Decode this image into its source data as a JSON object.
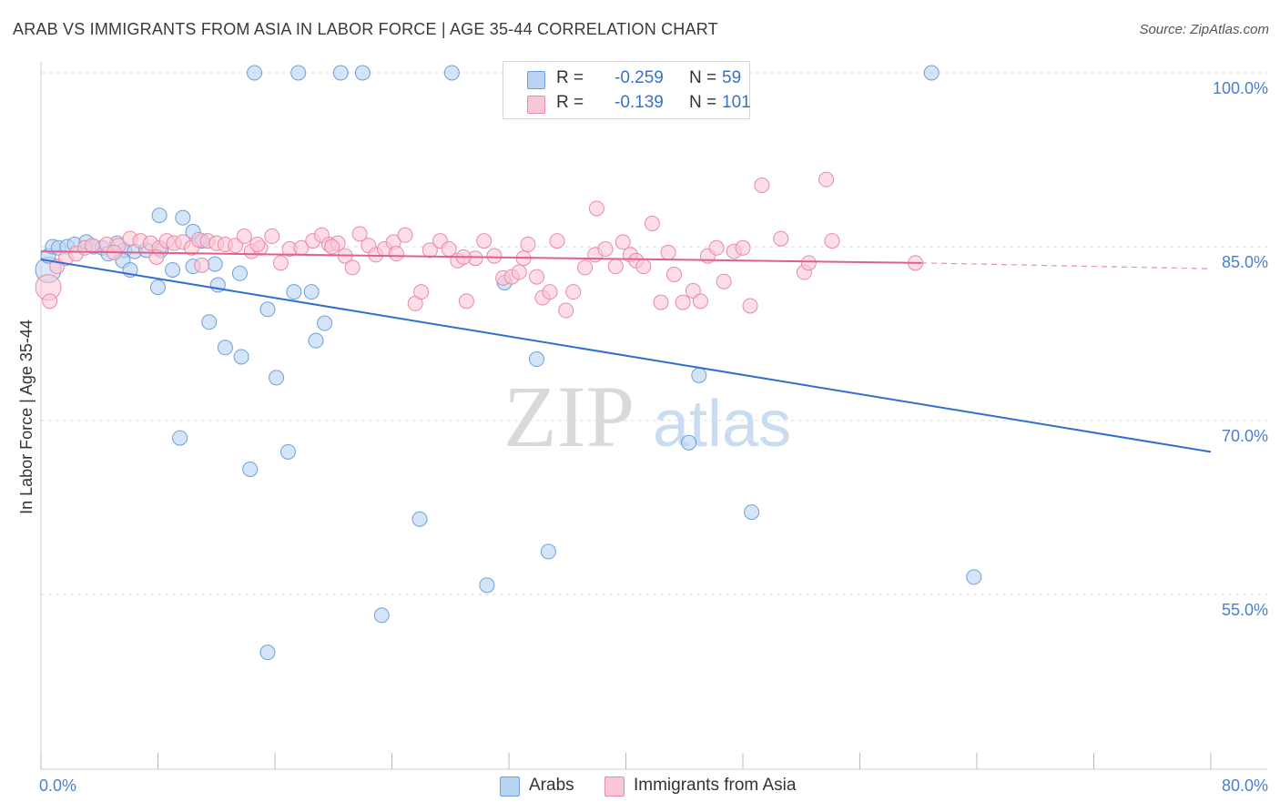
{
  "title": "ARAB VS IMMIGRANTS FROM ASIA IN LABOR FORCE | AGE 35-44 CORRELATION CHART",
  "source": "Source: ZipAtlas.com",
  "watermark": {
    "zip": "ZIP",
    "atlas": "atlas"
  },
  "legend": {
    "rows": [
      {
        "label": "R =",
        "r": "-0.259",
        "n_label": "N =",
        "n": "59",
        "color": "#b9d3f3",
        "border": "#6e9fdc"
      },
      {
        "label": "R =",
        "r": "-0.139",
        "n_label": "N =",
        "n": "101",
        "color": "#fbc7d6",
        "border": "#e98aa8"
      }
    ]
  },
  "bottom_legend": [
    {
      "name": "Arabs",
      "color": "#b9d3f3",
      "border": "#6e9fdc"
    },
    {
      "name": "Immigrants from Asia",
      "color": "#fbc7d6",
      "border": "#e98aa8"
    }
  ],
  "chart_data": {
    "type": "scatter",
    "title": "ARAB VS IMMIGRANTS FROM ASIA IN LABOR FORCE | AGE 35-44 CORRELATION CHART",
    "xlabel": "",
    "ylabel": "In Labor Force | Age 35-44",
    "xlim": [
      0,
      80
    ],
    "ylim": [
      40,
      101
    ],
    "x_tick_labels": [
      "0.0%",
      "80.0%"
    ],
    "y_ticks": [
      100,
      85,
      70,
      55
    ],
    "y_tick_labels": [
      "100.0%",
      "85.0%",
      "70.0%",
      "55.0%"
    ],
    "grid": true,
    "legend_position": "top-center",
    "series": [
      {
        "name": "Arabs",
        "color": "#6e9fdc",
        "fill": "#b9d3f3",
        "line_color": "#2f6fd1",
        "trend": {
          "x": [
            0,
            80
          ],
          "y": [
            83.9,
            67.3
          ],
          "dashed_from": null
        },
        "points": [
          [
            14.6,
            100
          ],
          [
            17.6,
            100
          ],
          [
            20.5,
            100
          ],
          [
            22.0,
            100
          ],
          [
            28.1,
            100
          ],
          [
            47.5,
            100
          ],
          [
            60.9,
            100
          ],
          [
            0.5,
            84.2
          ],
          [
            0.8,
            85.0
          ],
          [
            1.2,
            84.9
          ],
          [
            1.8,
            85.0
          ],
          [
            2.3,
            85.2
          ],
          [
            3.1,
            85.4
          ],
          [
            3.6,
            85.0
          ],
          [
            4.2,
            84.9
          ],
          [
            4.6,
            84.4
          ],
          [
            5.2,
            85.3
          ],
          [
            5.7,
            84.7
          ],
          [
            6.4,
            84.6
          ],
          [
            7.2,
            84.7
          ],
          [
            8.2,
            84.7
          ],
          [
            5.6,
            83.8
          ],
          [
            6.1,
            83.0
          ],
          [
            9.0,
            83.0
          ],
          [
            10.4,
            83.3
          ],
          [
            11.9,
            83.5
          ],
          [
            13.6,
            82.7
          ],
          [
            8.0,
            81.5
          ],
          [
            12.1,
            81.7
          ],
          [
            17.3,
            81.1
          ],
          [
            18.5,
            81.1
          ],
          [
            8.1,
            87.7
          ],
          [
            9.7,
            87.5
          ],
          [
            10.4,
            86.3
          ],
          [
            11.0,
            85.5
          ],
          [
            11.5,
            78.5
          ],
          [
            19.4,
            78.4
          ],
          [
            15.5,
            79.6
          ],
          [
            12.6,
            76.3
          ],
          [
            13.7,
            75.5
          ],
          [
            18.8,
            76.9
          ],
          [
            16.1,
            73.7
          ],
          [
            33.9,
            75.3
          ],
          [
            45.0,
            73.9
          ],
          [
            9.5,
            68.5
          ],
          [
            16.9,
            67.3
          ],
          [
            14.3,
            65.8
          ],
          [
            44.3,
            68.1
          ],
          [
            25.9,
            61.5
          ],
          [
            48.6,
            62.1
          ],
          [
            34.7,
            58.7
          ],
          [
            63.8,
            56.5
          ],
          [
            30.5,
            55.8
          ],
          [
            23.3,
            53.2
          ],
          [
            15.5,
            50.0
          ],
          [
            31.7,
            81.9
          ]
        ],
        "big_points": [
          [
            0.5,
            83.0
          ]
        ]
      },
      {
        "name": "Immigrants from Asia",
        "color": "#e98aa8",
        "fill": "#fbc7d6",
        "line_color": "#e0608a",
        "trend": {
          "x": [
            0,
            60.2,
            80
          ],
          "y": [
            84.6,
            83.6,
            83.1
          ],
          "dashed_from": 60.2
        },
        "points": [
          [
            0.6,
            80.3
          ],
          [
            1.1,
            83.3
          ],
          [
            1.7,
            84.0
          ],
          [
            2.4,
            84.4
          ],
          [
            3.0,
            84.9
          ],
          [
            3.5,
            85.1
          ],
          [
            4.5,
            85.2
          ],
          [
            5.3,
            85.1
          ],
          [
            6.1,
            85.7
          ],
          [
            6.8,
            85.5
          ],
          [
            7.5,
            85.3
          ],
          [
            8.1,
            84.9
          ],
          [
            8.6,
            85.5
          ],
          [
            9.1,
            85.3
          ],
          [
            9.7,
            85.4
          ],
          [
            10.3,
            84.9
          ],
          [
            10.8,
            85.6
          ],
          [
            11.4,
            85.5
          ],
          [
            12.0,
            85.3
          ],
          [
            12.6,
            85.2
          ],
          [
            13.3,
            85.1
          ],
          [
            13.9,
            85.9
          ],
          [
            14.4,
            84.6
          ],
          [
            15.0,
            84.9
          ],
          [
            15.8,
            85.9
          ],
          [
            16.4,
            83.6
          ],
          [
            17.0,
            84.8
          ],
          [
            17.8,
            84.9
          ],
          [
            18.6,
            85.5
          ],
          [
            19.2,
            86.0
          ],
          [
            19.7,
            85.2
          ],
          [
            20.3,
            85.3
          ],
          [
            20.8,
            84.2
          ],
          [
            21.3,
            83.2
          ],
          [
            21.8,
            86.1
          ],
          [
            22.4,
            85.1
          ],
          [
            22.9,
            84.3
          ],
          [
            23.5,
            84.8
          ],
          [
            24.1,
            85.4
          ],
          [
            24.9,
            86.0
          ],
          [
            25.6,
            80.1
          ],
          [
            26.0,
            81.1
          ],
          [
            26.6,
            84.7
          ],
          [
            27.3,
            85.5
          ],
          [
            27.9,
            84.8
          ],
          [
            28.5,
            83.8
          ],
          [
            29.1,
            80.3
          ],
          [
            29.7,
            84.0
          ],
          [
            30.3,
            85.5
          ],
          [
            31.0,
            84.2
          ],
          [
            31.6,
            82.3
          ],
          [
            32.2,
            82.4
          ],
          [
            32.7,
            82.8
          ],
          [
            33.3,
            85.2
          ],
          [
            33.9,
            82.4
          ],
          [
            34.3,
            80.6
          ],
          [
            34.8,
            81.1
          ],
          [
            35.3,
            85.5
          ],
          [
            35.9,
            79.5
          ],
          [
            36.4,
            81.1
          ],
          [
            37.2,
            83.2
          ],
          [
            37.9,
            84.3
          ],
          [
            38.0,
            88.3
          ],
          [
            38.6,
            84.8
          ],
          [
            39.3,
            83.3
          ],
          [
            39.8,
            85.4
          ],
          [
            40.3,
            84.3
          ],
          [
            40.7,
            83.8
          ],
          [
            41.2,
            83.3
          ],
          [
            41.8,
            87.0
          ],
          [
            42.4,
            80.2
          ],
          [
            42.9,
            84.5
          ],
          [
            43.3,
            82.6
          ],
          [
            43.9,
            80.2
          ],
          [
            44.6,
            81.2
          ],
          [
            45.1,
            80.3
          ],
          [
            45.6,
            84.2
          ],
          [
            46.2,
            84.9
          ],
          [
            46.7,
            82.0
          ],
          [
            47.4,
            84.6
          ],
          [
            48.0,
            84.9
          ],
          [
            48.5,
            79.9
          ],
          [
            49.3,
            90.3
          ],
          [
            50.6,
            85.7
          ],
          [
            52.2,
            82.8
          ],
          [
            52.5,
            83.6
          ],
          [
            53.7,
            90.8
          ],
          [
            54.1,
            85.5
          ],
          [
            59.8,
            83.6
          ],
          [
            5.0,
            84.5
          ],
          [
            7.9,
            84.1
          ],
          [
            11.0,
            83.4
          ],
          [
            14.8,
            85.2
          ],
          [
            19.9,
            85.0
          ],
          [
            24.3,
            84.4
          ],
          [
            28.9,
            84.1
          ],
          [
            33.0,
            84.0
          ]
        ],
        "big_points": [
          [
            0.5,
            81.5
          ]
        ]
      }
    ]
  }
}
